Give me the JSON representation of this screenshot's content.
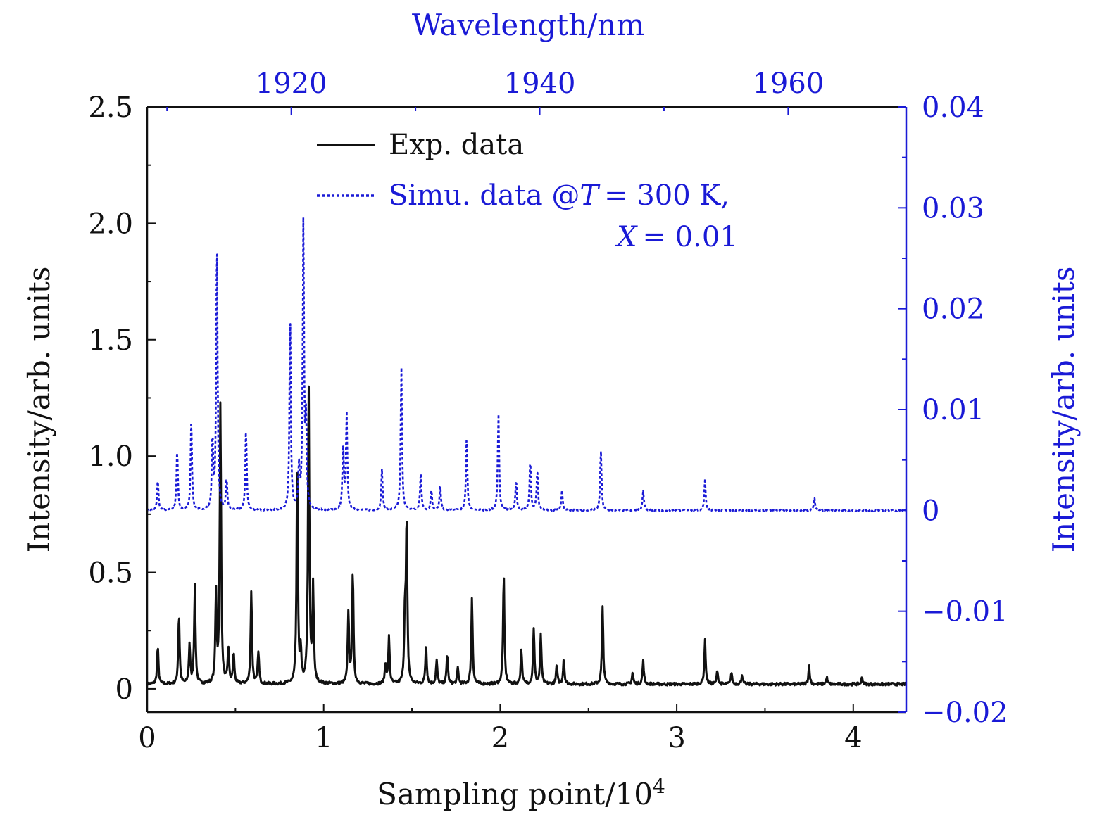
{
  "chart_data": {
    "type": "line",
    "xlabel": "Sampling point/10",
    "xlabel_sup": "4",
    "ylabel_left": "Intensity/arb. units",
    "ylabel_right": "Intensity/arb. units",
    "x2label": "Wavelength/nm",
    "xlim": [
      0,
      4.3
    ],
    "ylim_left": [
      -0.1,
      2.5
    ],
    "ylim_right": [
      -0.02,
      0.04
    ],
    "x2_range_nm": [
      1908.4,
      1969.5
    ],
    "x_ticks": [
      {
        "value": 0,
        "label": "0"
      },
      {
        "value": 1,
        "label": "1"
      },
      {
        "value": 2,
        "label": "2"
      },
      {
        "value": 3,
        "label": "3"
      },
      {
        "value": 4,
        "label": "4"
      }
    ],
    "y_left_ticks": [
      {
        "value": 0,
        "label": "0"
      },
      {
        "value": 0.5,
        "label": "0.5"
      },
      {
        "value": 1.0,
        "label": "1.0"
      },
      {
        "value": 1.5,
        "label": "1.5"
      },
      {
        "value": 2.0,
        "label": "2.0"
      },
      {
        "value": 2.5,
        "label": "2.5"
      }
    ],
    "y_right_ticks": [
      {
        "value": -0.02,
        "label": "−0.02"
      },
      {
        "value": -0.01,
        "label": "−0.01"
      },
      {
        "value": 0,
        "label": "0"
      },
      {
        "value": 0.01,
        "label": "0.01"
      },
      {
        "value": 0.02,
        "label": "0.02"
      },
      {
        "value": 0.03,
        "label": "0.03"
      },
      {
        "value": 0.04,
        "label": "0.04"
      }
    ],
    "x2_ticks": [
      {
        "value": 1920,
        "label": "1920"
      },
      {
        "value": 1940,
        "label": "1940"
      },
      {
        "value": 1960,
        "label": "1960"
      }
    ],
    "legend_position": "top-center",
    "series": [
      {
        "name": "Exp. data",
        "axis": "left",
        "color": "#111111",
        "style": "solid",
        "baseline": 0.02,
        "peaks": [
          {
            "x": 0.06,
            "y": 0.18
          },
          {
            "x": 0.18,
            "y": 0.32
          },
          {
            "x": 0.24,
            "y": 0.19
          },
          {
            "x": 0.27,
            "y": 0.44
          },
          {
            "x": 0.39,
            "y": 0.4
          },
          {
            "x": 0.415,
            "y": 1.22
          },
          {
            "x": 0.46,
            "y": 0.17
          },
          {
            "x": 0.49,
            "y": 0.15
          },
          {
            "x": 0.59,
            "y": 0.42
          },
          {
            "x": 0.63,
            "y": 0.16
          },
          {
            "x": 0.85,
            "y": 0.94
          },
          {
            "x": 0.87,
            "y": 0.15
          },
          {
            "x": 0.915,
            "y": 1.28
          },
          {
            "x": 0.94,
            "y": 0.43
          },
          {
            "x": 1.14,
            "y": 0.33
          },
          {
            "x": 1.165,
            "y": 0.5
          },
          {
            "x": 1.35,
            "y": 0.11
          },
          {
            "x": 1.37,
            "y": 0.22
          },
          {
            "x": 1.46,
            "y": 0.3
          },
          {
            "x": 1.47,
            "y": 0.72
          },
          {
            "x": 1.58,
            "y": 0.19
          },
          {
            "x": 1.64,
            "y": 0.12
          },
          {
            "x": 1.7,
            "y": 0.15
          },
          {
            "x": 1.76,
            "y": 0.09
          },
          {
            "x": 1.84,
            "y": 0.39
          },
          {
            "x": 2.02,
            "y": 0.49
          },
          {
            "x": 2.12,
            "y": 0.17
          },
          {
            "x": 2.19,
            "y": 0.26
          },
          {
            "x": 2.23,
            "y": 0.23
          },
          {
            "x": 2.32,
            "y": 0.1
          },
          {
            "x": 2.36,
            "y": 0.13
          },
          {
            "x": 2.58,
            "y": 0.35
          },
          {
            "x": 2.75,
            "y": 0.07
          },
          {
            "x": 2.81,
            "y": 0.12
          },
          {
            "x": 3.16,
            "y": 0.21
          },
          {
            "x": 3.23,
            "y": 0.08
          },
          {
            "x": 3.31,
            "y": 0.07
          },
          {
            "x": 3.37,
            "y": 0.06
          },
          {
            "x": 3.75,
            "y": 0.1
          },
          {
            "x": 3.85,
            "y": 0.05
          },
          {
            "x": 4.05,
            "y": 0.05
          }
        ]
      },
      {
        "name": "Simu. data @T = 300 K, X = 0.01",
        "axis": "right",
        "color": "#1a1ad6",
        "style": "dotted",
        "baseline": 0.0,
        "peaks": [
          {
            "x": 0.06,
            "y": 0.003
          },
          {
            "x": 0.17,
            "y": 0.006
          },
          {
            "x": 0.25,
            "y": 0.009
          },
          {
            "x": 0.37,
            "y": 0.007
          },
          {
            "x": 0.395,
            "y": 0.027
          },
          {
            "x": 0.45,
            "y": 0.003
          },
          {
            "x": 0.56,
            "y": 0.008
          },
          {
            "x": 0.81,
            "y": 0.019
          },
          {
            "x": 0.86,
            "y": 0.004
          },
          {
            "x": 0.885,
            "y": 0.0285
          },
          {
            "x": 0.9,
            "y": 0.008
          },
          {
            "x": 1.11,
            "y": 0.0065
          },
          {
            "x": 1.13,
            "y": 0.0095
          },
          {
            "x": 1.33,
            "y": 0.004
          },
          {
            "x": 1.44,
            "y": 0.0143
          },
          {
            "x": 1.55,
            "y": 0.0038
          },
          {
            "x": 1.61,
            "y": 0.002
          },
          {
            "x": 1.66,
            "y": 0.0025
          },
          {
            "x": 1.81,
            "y": 0.0072
          },
          {
            "x": 1.99,
            "y": 0.0096
          },
          {
            "x": 2.09,
            "y": 0.003
          },
          {
            "x": 2.17,
            "y": 0.005
          },
          {
            "x": 2.21,
            "y": 0.004
          },
          {
            "x": 2.35,
            "y": 0.002
          },
          {
            "x": 2.57,
            "y": 0.006
          },
          {
            "x": 2.81,
            "y": 0.002
          },
          {
            "x": 3.16,
            "y": 0.0031
          },
          {
            "x": 3.78,
            "y": 0.0013
          }
        ]
      }
    ]
  },
  "legend": {
    "exp_label": "Exp. data",
    "simu_label_prefix": "Simu. data @",
    "simu_T": "T",
    "simu_T_value": "= 300 K,",
    "simu_X": "X",
    "simu_X_value": "= 0.01"
  }
}
